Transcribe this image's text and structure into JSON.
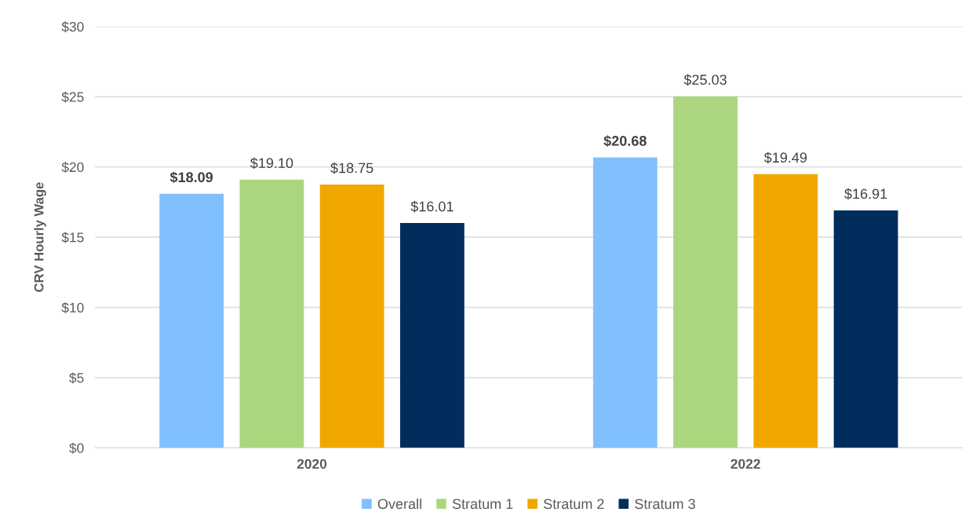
{
  "chart_data": {
    "type": "bar",
    "ylabel": "CRV Hourly Wage",
    "categories": [
      "2020",
      "2022"
    ],
    "series": [
      {
        "name": "Overall",
        "color": "#80c0ff",
        "values": [
          18.09,
          20.68
        ],
        "value_labels": [
          "$18.09",
          "$20.68"
        ]
      },
      {
        "name": "Stratum 1",
        "color": "#acd67e",
        "values": [
          19.1,
          25.03
        ],
        "value_labels": [
          "$19.10",
          "$25.03"
        ]
      },
      {
        "name": "Stratum 2",
        "color": "#f0a800",
        "values": [
          18.75,
          19.49
        ],
        "value_labels": [
          "$18.75",
          "$19.49"
        ]
      },
      {
        "name": "Stratum 3",
        "color": "#002d5c",
        "values": [
          16.01,
          16.91
        ],
        "value_labels": [
          "$16.01",
          "$16.91"
        ]
      }
    ],
    "ylim": [
      0,
      30
    ],
    "yticks": [
      {
        "value": 0,
        "label": "$0"
      },
      {
        "value": 5,
        "label": "$5"
      },
      {
        "value": 10,
        "label": "$10"
      },
      {
        "value": 15,
        "label": "$15"
      },
      {
        "value": 20,
        "label": "$20"
      },
      {
        "value": 25,
        "label": "$25"
      },
      {
        "value": 30,
        "label": "$30"
      }
    ],
    "grid": "y",
    "legend": "bottom"
  }
}
